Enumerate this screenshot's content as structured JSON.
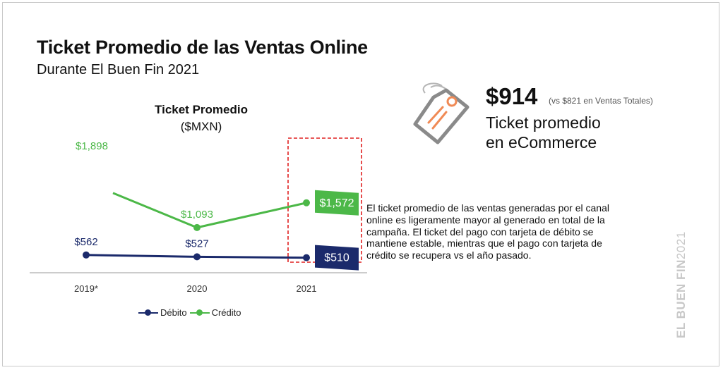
{
  "header": {
    "title": "Ticket Promedio de las Ventas Online",
    "subtitle": "Durante El Buen Fin 2021"
  },
  "colors": {
    "debito": "#1b2a6b",
    "credito": "#4cb848",
    "highlight_box": "#e02020",
    "axis": "#999999"
  },
  "chart_data": {
    "type": "line",
    "title": "Ticket Promedio",
    "subtitle": "($MXN)",
    "categories": [
      "2019*",
      "2020",
      "2021"
    ],
    "series": [
      {
        "name": "Débito",
        "values": [
          562,
          527,
          510
        ],
        "labels": [
          "$562",
          "$527",
          "$510"
        ]
      },
      {
        "name": "Crédito",
        "values": [
          1898,
          1093,
          1572
        ],
        "labels": [
          "$1,898",
          "$1,093",
          "$1,572"
        ]
      }
    ],
    "legend": "bottom",
    "highlight": "2021",
    "grid": false
  },
  "kpi": {
    "value": "$914",
    "comparison": "(vs $821 en Ventas Totales)",
    "line1": "Ticket promedio",
    "line2": "en eCommerce",
    "icon": "price-tag-icon"
  },
  "paragraph": "El ticket promedio de las ventas generadas por el canal online es ligeramente mayor al generado en total de la campaña. El ticket del pago con tarjeta de débito se mantiene estable, mientras que el pago con tarjeta de crédito se recupera vs el año pasado.",
  "watermark": {
    "bold": "EL BUEN FIN",
    "light": "2021"
  }
}
